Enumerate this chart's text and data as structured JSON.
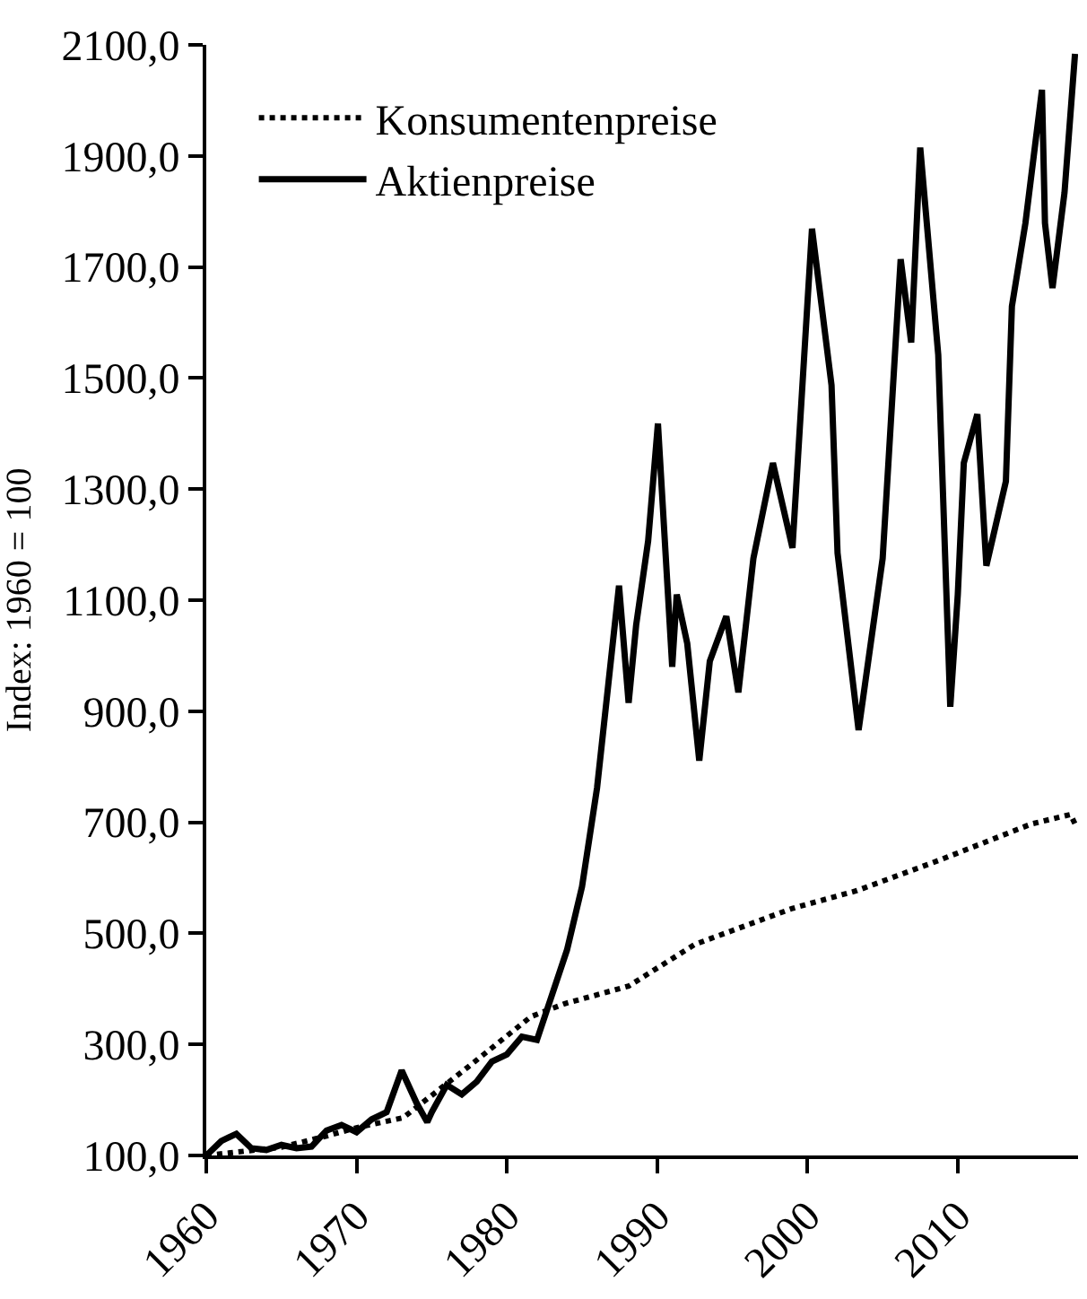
{
  "chart_data": {
    "type": "line",
    "ylabel": "Index: 1960 = 100",
    "xlim": [
      1960,
      2018
    ],
    "xticks": [
      1960,
      1970,
      1980,
      1990,
      2000,
      2010
    ],
    "ylim": [
      100,
      2100
    ],
    "yticks": [
      {
        "value": 100,
        "label": "100,0"
      },
      {
        "value": 300,
        "label": "300,0"
      },
      {
        "value": 500,
        "label": "500,0"
      },
      {
        "value": 700,
        "label": "700,0"
      },
      {
        "value": 900,
        "label": "900,0"
      },
      {
        "value": 1100,
        "label": "1100,0"
      },
      {
        "value": 1300,
        "label": "1300,0"
      },
      {
        "value": 1500,
        "label": "1500,0"
      },
      {
        "value": 1700,
        "label": "1700,0"
      },
      {
        "value": 1900,
        "label": "1900,0"
      },
      {
        "value": 2100,
        "label": "2100,0"
      }
    ],
    "legend": "top left",
    "series": [
      {
        "name": "Konsumentenpreise",
        "color": "#000000",
        "line_style": "dotted",
        "x": [
          1960,
          1965,
          1968,
          1970,
          1973.1,
          1977.4,
          1981.6,
          1983.8,
          1988.1,
          1992.5,
          1999,
          2003.3,
          2008.8,
          2011.9,
          2014.9,
          2017.5,
          2017.8
        ],
        "values": [
          100,
          115,
          135,
          150,
          168,
          259,
          350,
          373,
          405,
          480,
          545,
          577,
          632,
          665,
          697,
          714,
          697
        ]
      },
      {
        "name": "Aktienpreise",
        "color": "#000000",
        "line_style": "solid",
        "x": [
          1960,
          1961,
          1962,
          1963,
          1964,
          1965,
          1966,
          1967,
          1968,
          1969,
          1970,
          1971,
          1972,
          1973,
          1974,
          1974.7,
          1975,
          1976,
          1977,
          1978,
          1979,
          1980,
          1981,
          1982,
          1983,
          1984,
          1985,
          1986,
          1987.46,
          1988.1,
          1988.6,
          1989.4,
          1990.05,
          1991,
          1991.3,
          1992,
          1992.8,
          1993.5,
          1994.6,
          1995.4,
          1996.4,
          1997.7,
          1999,
          2000.3,
          2001.6,
          2002,
          2003.4,
          2005,
          2006.2,
          2006.9,
          2007.5,
          2008.7,
          2009.5,
          2010,
          2010.4,
          2011.3,
          2011.9,
          2013.2,
          2013.6,
          2014.5,
          2015.6,
          2015.8,
          2016.3,
          2017.1,
          2017.8
        ],
        "values": [
          100,
          126,
          139,
          113,
          110,
          119,
          113,
          116,
          145,
          155,
          142,
          165,
          178,
          253,
          194,
          160,
          178,
          227,
          210,
          233,
          269,
          282,
          314,
          308,
          389,
          470,
          584,
          762,
          1126,
          915,
          1055,
          1207,
          1418,
          980,
          1110,
          1022,
          811,
          990,
          1071,
          934,
          1175,
          1347,
          1194,
          1769,
          1487,
          1185,
          866,
          1175,
          1714,
          1564,
          1915,
          1542,
          908,
          1110,
          1347,
          1435,
          1162,
          1314,
          1629,
          1779,
          2019,
          1779,
          1662,
          1834,
          2084
        ]
      }
    ]
  }
}
